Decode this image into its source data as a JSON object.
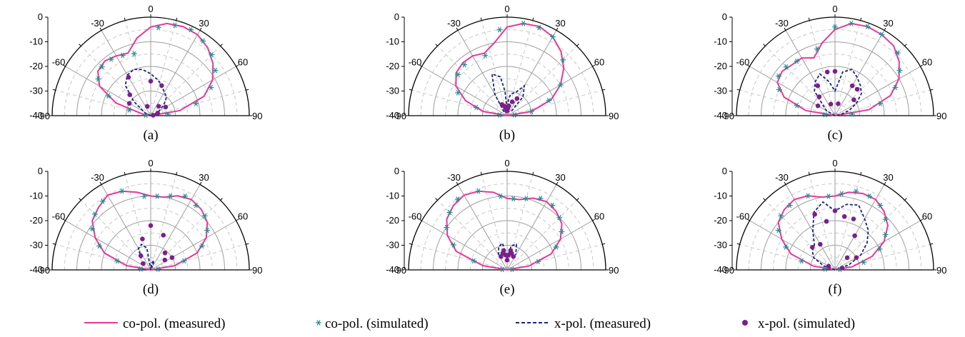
{
  "colors": {
    "co_measured": "#e8379a",
    "co_simulated": "#1f8f8f",
    "x_measured": "#1a237e",
    "x_simulated": "#7b1f8c",
    "grid_major": "#9e9e9e",
    "grid_minor": "#c8c8c8"
  },
  "legend": {
    "co_measured": "co-pol. (measured)",
    "co_simulated": "co-pol. (simulated)",
    "x_measured": "x-pol. (measured)",
    "x_simulated": "x-pol. (simulated)"
  },
  "chart_data": [
    {
      "label": "(a)",
      "type": "polar-line",
      "angle_unit": "deg",
      "r_unit": "dB",
      "angle_ticks": [
        -90,
        -60,
        -30,
        0,
        30,
        60,
        90
      ],
      "r_ticks": [
        0,
        -10,
        -20,
        -30,
        -40
      ],
      "r_range": [
        -40,
        0
      ],
      "co_measured": {
        "angle": [
          -90,
          -80,
          -70,
          -60,
          -50,
          -40,
          -30,
          -20,
          -10,
          0,
          10,
          20,
          30,
          40,
          50,
          60,
          70,
          80,
          90
        ],
        "value": [
          -40,
          -37,
          -25,
          -16,
          -12,
          -11,
          -12,
          -13,
          -8,
          -4,
          -2,
          -1.5,
          -2,
          -4,
          -7,
          -11,
          -17,
          -28,
          -40
        ]
      },
      "co_simulated": {
        "angle": [
          -85,
          -75,
          -65,
          -55,
          -45,
          -35,
          -25,
          -15,
          5,
          15,
          25,
          35,
          45,
          55,
          65,
          75,
          85
        ],
        "value": [
          -38,
          -31,
          -21,
          -14,
          -12,
          -12,
          -13,
          -14,
          -4,
          -2,
          -1.5,
          -3,
          -5,
          -8,
          -13,
          -21,
          -33
        ]
      },
      "x_measured": {
        "angle": [
          -90,
          -70,
          -50,
          -40,
          -30,
          -20,
          -10,
          0,
          10,
          15,
          20,
          30,
          40,
          50,
          60,
          70,
          80,
          90
        ],
        "value": [
          -40,
          -38,
          -31,
          -24,
          -21,
          -20,
          -21,
          -23,
          -25,
          -26,
          -27,
          -29,
          -30,
          -33,
          -36,
          -38,
          -39,
          -40
        ]
      },
      "x_simulated": {
        "angle": [
          -60,
          -45,
          -30,
          -20,
          0,
          20,
          40,
          60,
          70,
          80
        ],
        "value": [
          -30,
          -28,
          -22,
          -36,
          -26,
          -27,
          -35,
          -33,
          -37,
          -39
        ]
      }
    },
    {
      "label": "(b)",
      "type": "polar-line",
      "angle_unit": "deg",
      "r_unit": "dB",
      "angle_ticks": [
        -90,
        -60,
        -30,
        0,
        30,
        60,
        90
      ],
      "r_ticks": [
        0,
        -10,
        -20,
        -30,
        -40
      ],
      "r_range": [
        -40,
        0
      ],
      "co_measured": {
        "angle": [
          -90,
          -80,
          -70,
          -60,
          -50,
          -40,
          -30,
          -20,
          -10,
          0,
          10,
          20,
          30,
          40,
          50,
          60,
          70,
          80,
          90
        ],
        "value": [
          -40,
          -30,
          -22,
          -16,
          -13,
          -12,
          -12,
          -13,
          -10,
          -4,
          -2,
          -1.5,
          -3,
          -6,
          -10,
          -15,
          -21,
          -30,
          -40
        ]
      },
      "co_simulated": {
        "angle": [
          -85,
          -75,
          -65,
          -50,
          -40,
          -20,
          -5,
          10,
          20,
          30,
          45,
          60,
          70,
          80,
          85
        ],
        "value": [
          -37,
          -27,
          -18,
          -14,
          -13,
          -14,
          -5,
          -2,
          -2,
          -3,
          -8,
          -15,
          -22,
          -30,
          -37
        ]
      },
      "x_measured": {
        "angle": [
          -40,
          -30,
          -20,
          -10,
          -5,
          0,
          5,
          10,
          20,
          30,
          40,
          45
        ],
        "value": [
          -38,
          -30,
          -22,
          -24,
          -30,
          -38,
          -33,
          -31,
          -30,
          -26,
          -30,
          -38
        ]
      },
      "x_simulated": {
        "angle": [
          -25,
          -15,
          -10,
          -5,
          0,
          5,
          10,
          20,
          30
        ],
        "value": [
          -35,
          -36,
          -37,
          -38,
          -38,
          -37,
          -36,
          -34,
          -32
        ]
      }
    },
    {
      "label": "(c)",
      "type": "polar-line",
      "angle_unit": "deg",
      "r_unit": "dB",
      "angle_ticks": [
        -90,
        -60,
        -30,
        0,
        30,
        60,
        90
      ],
      "r_ticks": [
        0,
        -10,
        -20,
        -30,
        -40
      ],
      "r_range": [
        -40,
        0
      ],
      "co_measured": {
        "angle": [
          -90,
          -80,
          -70,
          -60,
          -50,
          -40,
          -30,
          -20,
          -10,
          0,
          10,
          20,
          30,
          40,
          50,
          60,
          70,
          80,
          90
        ],
        "value": [
          -40,
          -28,
          -18,
          -13,
          -12,
          -13,
          -13,
          -15,
          -10,
          -5,
          -2,
          -1.5,
          -2,
          -3,
          -6,
          -10,
          -16,
          -26,
          -40
        ]
      },
      "co_simulated": {
        "angle": [
          -85,
          -75,
          -65,
          -55,
          -45,
          -35,
          -15,
          0,
          10,
          20,
          30,
          45,
          55,
          65,
          75,
          85
        ],
        "value": [
          -36,
          -24,
          -15,
          -12,
          -12,
          -13,
          -12,
          -4,
          -2,
          -1.5,
          -2,
          -4,
          -8,
          -13,
          -21,
          -33
        ]
      },
      "x_measured": {
        "angle": [
          -90,
          -60,
          -40,
          -30,
          -20,
          -10,
          0,
          10,
          20,
          30,
          40,
          50,
          60,
          70,
          80,
          90
        ],
        "value": [
          -40,
          -36,
          -27,
          -24,
          -22,
          -26,
          -30,
          -22,
          -20,
          -22,
          -24,
          -26,
          -30,
          -34,
          -38,
          -40
        ]
      },
      "x_simulated": {
        "angle": [
          -60,
          -40,
          -30,
          -20,
          -10,
          0,
          15,
          30,
          40,
          50
        ],
        "value": [
          -32,
          -30,
          -26,
          -35,
          -22,
          -22,
          -35,
          -26,
          -26,
          -30
        ]
      }
    },
    {
      "label": "(d)",
      "type": "polar-line",
      "angle_unit": "deg",
      "r_unit": "dB",
      "angle_ticks": [
        -90,
        -60,
        -30,
        0,
        30,
        60,
        90
      ],
      "r_ticks": [
        0,
        -10,
        -20,
        -30,
        -40
      ],
      "r_range": [
        -40,
        0
      ],
      "co_measured": {
        "angle": [
          -90,
          -80,
          -70,
          -60,
          -50,
          -40,
          -30,
          -20,
          -10,
          0,
          10,
          20,
          30,
          40,
          50,
          60,
          70,
          80,
          90
        ],
        "value": [
          -40,
          -30,
          -20,
          -14,
          -9,
          -7,
          -5,
          -6,
          -8,
          -10,
          -10,
          -8,
          -7,
          -8,
          -10,
          -14,
          -20,
          -30,
          -40
        ]
      },
      "co_simulated": {
        "angle": [
          -85,
          -75,
          -65,
          -55,
          -45,
          -35,
          -20,
          -5,
          5,
          15,
          25,
          35,
          45,
          55,
          65,
          75,
          85
        ],
        "value": [
          -36,
          -26,
          -17,
          -11,
          -8,
          -6,
          -6,
          -10,
          -10,
          -9,
          -7,
          -8,
          -9,
          -12,
          -17,
          -26,
          -37
        ]
      },
      "x_measured": {
        "angle": [
          -40,
          -30,
          -20,
          -10,
          0,
          10,
          20,
          30
        ],
        "value": [
          -34,
          -30,
          -29,
          -31,
          -40,
          -37,
          -36,
          -39
        ]
      },
      "x_simulated": {
        "angle": [
          -50,
          -35,
          -15,
          0,
          20,
          40,
          55,
          60
        ],
        "value": [
          -36,
          -33,
          -27,
          -22,
          -25,
          -31,
          -33,
          -30
        ]
      }
    },
    {
      "label": "(e)",
      "type": "polar-line",
      "angle_unit": "deg",
      "r_unit": "dB",
      "angle_ticks": [
        -90,
        -60,
        -30,
        0,
        30,
        60,
        90
      ],
      "r_ticks": [
        0,
        -10,
        -20,
        -30,
        -40
      ],
      "r_range": [
        -40,
        0
      ],
      "co_measured": {
        "angle": [
          -90,
          -80,
          -70,
          -60,
          -50,
          -40,
          -30,
          -20,
          -10,
          0,
          10,
          20,
          30,
          40,
          50,
          60,
          70,
          80,
          90
        ],
        "value": [
          -40,
          -30,
          -18,
          -12,
          -8,
          -6,
          -5,
          -6,
          -8,
          -11,
          -11,
          -9,
          -8,
          -9,
          -11,
          -15,
          -21,
          -31,
          -40
        ]
      },
      "co_simulated": {
        "angle": [
          -85,
          -75,
          -65,
          -55,
          -45,
          -35,
          -20,
          -5,
          5,
          15,
          25,
          35,
          45,
          55,
          65,
          75,
          85
        ],
        "value": [
          -38,
          -26,
          -16,
          -10,
          -7,
          -5,
          -6,
          -10,
          -11,
          -10,
          -8,
          -8,
          -10,
          -13,
          -18,
          -27,
          -38
        ]
      },
      "x_measured": {
        "angle": [
          -30,
          -20,
          -10,
          0,
          10,
          20,
          30
        ],
        "value": [
          -33,
          -30,
          -29,
          -35,
          -30,
          -29,
          -33
        ]
      },
      "x_simulated": {
        "angle": [
          -25,
          -15,
          -10,
          -5,
          0,
          5,
          10,
          15,
          25
        ],
        "value": [
          -34,
          -33,
          -32,
          -34,
          -36,
          -34,
          -32,
          -33,
          -34
        ]
      }
    },
    {
      "label": "(f)",
      "type": "polar-line",
      "angle_unit": "deg",
      "r_unit": "dB",
      "angle_ticks": [
        -90,
        -60,
        -30,
        0,
        30,
        60,
        90
      ],
      "r_ticks": [
        0,
        -10,
        -20,
        -30,
        -40
      ],
      "r_range": [
        -40,
        0
      ],
      "co_measured": {
        "angle": [
          -90,
          -80,
          -70,
          -60,
          -50,
          -40,
          -30,
          -20,
          -10,
          0,
          10,
          20,
          30,
          40,
          50,
          60,
          70,
          80,
          90
        ],
        "value": [
          -40,
          -31,
          -21,
          -15,
          -10,
          -8,
          -7,
          -8,
          -10,
          -10,
          -8,
          -7,
          -7,
          -9,
          -12,
          -17,
          -24,
          -33,
          -40
        ]
      },
      "co_simulated": {
        "angle": [
          -85,
          -75,
          -65,
          -55,
          -45,
          -35,
          -20,
          -5,
          5,
          15,
          25,
          35,
          45,
          55,
          65,
          75,
          85
        ],
        "value": [
          -36,
          -26,
          -18,
          -12,
          -9,
          -8,
          -8,
          -10,
          -9,
          -7,
          -7,
          -8,
          -11,
          -15,
          -20,
          -28,
          -38
        ]
      },
      "x_measured": {
        "angle": [
          -80,
          -70,
          -60,
          -50,
          -40,
          -30,
          -20,
          -10,
          0,
          10,
          20,
          30,
          40,
          50,
          60,
          70,
          80,
          90
        ],
        "value": [
          -40,
          -35,
          -30,
          -28,
          -27,
          -22,
          -15,
          -12,
          -16,
          -13,
          -12,
          -16,
          -19,
          -23,
          -28,
          -34,
          -39,
          -40
        ]
      },
      "x_simulated": {
        "angle": [
          -60,
          -45,
          -30,
          -20,
          -10,
          0,
          10,
          20,
          30,
          45,
          60,
          75
        ],
        "value": [
          -37,
          -27,
          -28,
          -16,
          -20,
          -16,
          -18,
          -18,
          -24,
          -33,
          -30,
          -37
        ]
      }
    }
  ]
}
